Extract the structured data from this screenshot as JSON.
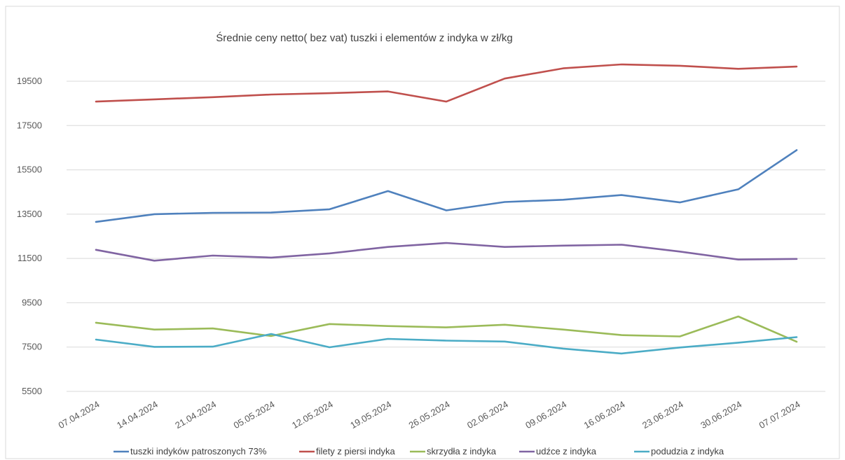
{
  "chart_data": {
    "type": "line",
    "title": "Średnie ceny netto( bez vat) tuszki i elementów z indyka w zł/kg",
    "xlabel": "",
    "ylabel": "",
    "categories": [
      "07.04.2024",
      "14.04.2024",
      "21.04.2024",
      "05.05.2024",
      "12.05.2024",
      "19.05.2024",
      "26.05.2024",
      "02.06.2024",
      "09.06.2024",
      "16.06.2024",
      "23.06.2024",
      "30.06.2024",
      "07.07.2024"
    ],
    "yticks": [
      "5500",
      "7500",
      "9500",
      "11500",
      "13500",
      "15500",
      "17500",
      "19500"
    ],
    "ylim": [
      5500,
      21000
    ],
    "grid": true,
    "legend_position": "bottom",
    "series": [
      {
        "name": "tuszki indyków patroszonych 73%",
        "color": "#4f81bd",
        "values": [
          13150,
          13500,
          13560,
          13570,
          13720,
          14540,
          13670,
          14050,
          14150,
          14360,
          14030,
          14620,
          16390
        ]
      },
      {
        "name": "filety z piersi indyka",
        "color": "#c0504d",
        "values": [
          18580,
          18680,
          18780,
          18900,
          18960,
          19040,
          18580,
          19620,
          20080,
          20260,
          20200,
          20060,
          20160
        ]
      },
      {
        "name": "skrzydła z indyka",
        "color": "#9bbb59",
        "values": [
          8600,
          8290,
          8340,
          8000,
          8540,
          8450,
          8390,
          8510,
          8290,
          8040,
          7980,
          8880,
          7740
        ]
      },
      {
        "name": "udźce z indyka",
        "color": "#8064a2",
        "values": [
          11890,
          11400,
          11630,
          11540,
          11730,
          12020,
          12200,
          12020,
          12080,
          12120,
          11810,
          11450,
          11480
        ]
      },
      {
        "name": "podudzia z indyka",
        "color": "#4bacc6",
        "values": [
          7840,
          7510,
          7520,
          8090,
          7490,
          7870,
          7790,
          7750,
          7430,
          7210,
          7480,
          7700,
          7950
        ]
      }
    ]
  }
}
